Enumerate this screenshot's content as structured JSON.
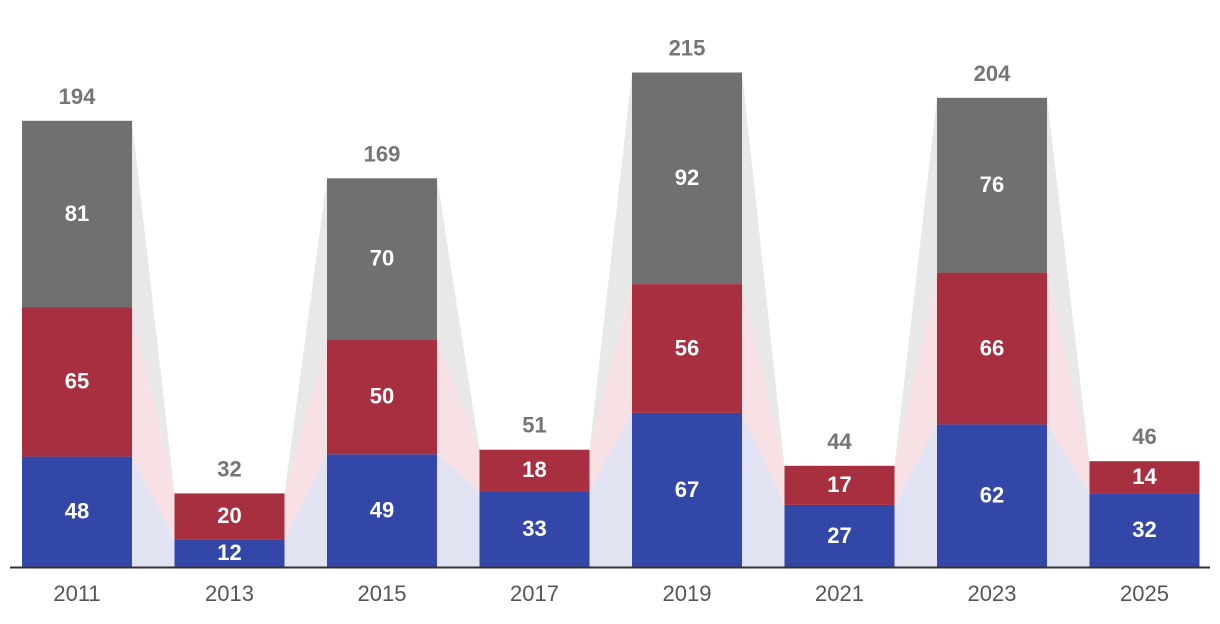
{
  "chart_data": {
    "type": "bar",
    "stacked": true,
    "categories": [
      "2011",
      "2013",
      "2015",
      "2017",
      "2019",
      "2021",
      "2023",
      "2025"
    ],
    "series": [
      {
        "values": [
          48,
          12,
          49,
          33,
          67,
          27,
          62,
          32
        ],
        "color": "#3347a8"
      },
      {
        "values": [
          65,
          20,
          50,
          18,
          56,
          17,
          66,
          14
        ],
        "color": "#a72f3f"
      },
      {
        "values": [
          81,
          0,
          70,
          0,
          92,
          0,
          76,
          0
        ],
        "color": "#707070"
      }
    ],
    "totals": [
      194,
      32,
      169,
      51,
      215,
      44,
      204,
      46
    ],
    "title": "",
    "xlabel": "",
    "ylabel": "",
    "ylim": [
      0,
      225
    ],
    "grid": false,
    "legend": "none",
    "connector_colors": [
      "#e1e3f3",
      "#f7e1e4",
      "#e8e8e8"
    ],
    "total_label_color": "#757575",
    "segment_label_color": "#ffffff"
  }
}
